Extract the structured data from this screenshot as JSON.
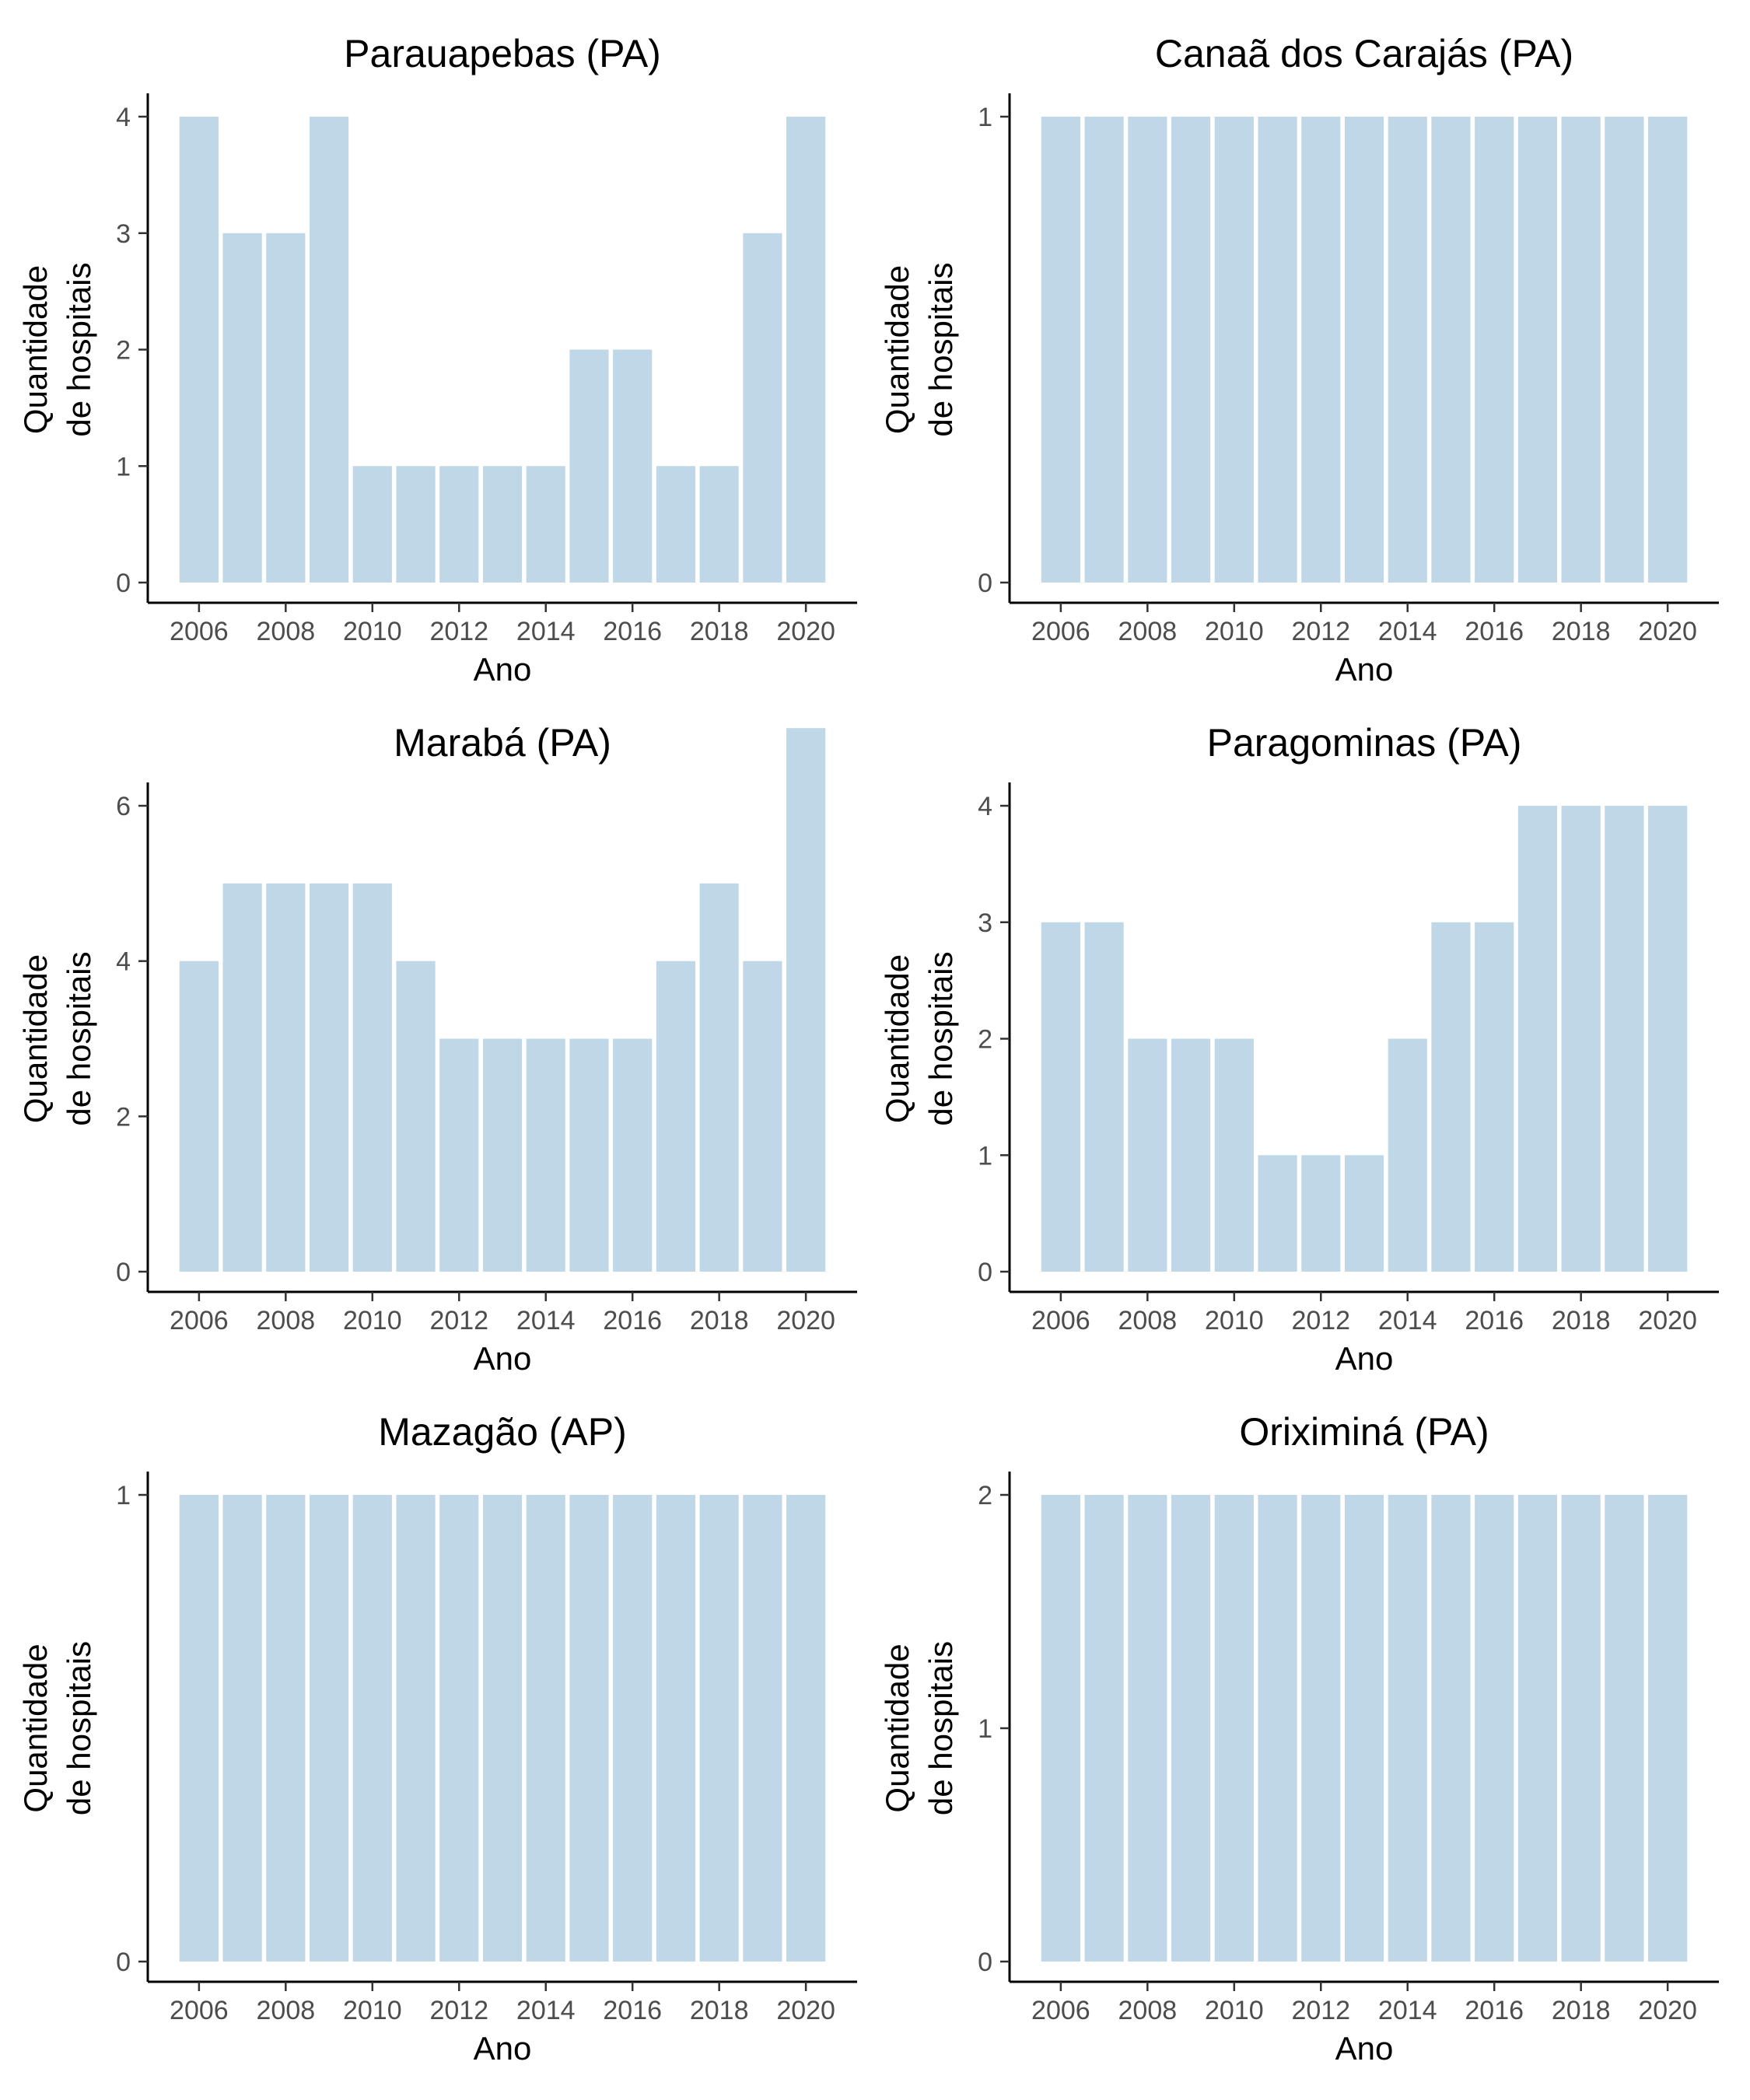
{
  "chart_data": [
    {
      "type": "bar",
      "title": "Parauapebas (PA)",
      "xlabel": "Ano",
      "ylabel": [
        "Quantidade",
        "de hospitais"
      ],
      "x": [
        2006,
        2007,
        2008,
        2009,
        2010,
        2011,
        2012,
        2013,
        2014,
        2015,
        2016,
        2017,
        2018,
        2019,
        2020
      ],
      "values": [
        4,
        3,
        3,
        4,
        1,
        1,
        1,
        1,
        1,
        2,
        2,
        1,
        1,
        3,
        4
      ],
      "xticks": [
        "2006",
        "2008",
        "2010",
        "2012",
        "2014",
        "2016",
        "2018",
        "2020"
      ],
      "yticks": [
        "0",
        "1",
        "2",
        "3",
        "4"
      ],
      "ylim": [
        0,
        4
      ]
    },
    {
      "type": "bar",
      "title": "Canaã dos Carajás (PA)",
      "xlabel": "Ano",
      "ylabel": [
        "Quantidade",
        "de hospitais"
      ],
      "x": [
        2006,
        2007,
        2008,
        2009,
        2010,
        2011,
        2012,
        2013,
        2014,
        2015,
        2016,
        2017,
        2018,
        2019,
        2020
      ],
      "values": [
        1,
        1,
        1,
        1,
        1,
        1,
        1,
        1,
        1,
        1,
        1,
        1,
        1,
        1,
        1
      ],
      "xticks": [
        "2006",
        "2008",
        "2010",
        "2012",
        "2014",
        "2016",
        "2018",
        "2020"
      ],
      "yticks": [
        "0",
        "1"
      ],
      "ylim": [
        0,
        1
      ]
    },
    {
      "type": "bar",
      "title": "Marabá (PA)",
      "xlabel": "Ano",
      "ylabel": [
        "Quantidade",
        "de hospitais"
      ],
      "x": [
        2006,
        2007,
        2008,
        2009,
        2010,
        2011,
        2012,
        2013,
        2014,
        2015,
        2016,
        2017,
        2018,
        2019,
        2020
      ],
      "values": [
        4,
        5,
        5,
        5,
        5,
        4,
        3,
        3,
        3,
        3,
        3,
        4,
        5,
        4,
        7
      ],
      "xticks": [
        "2006",
        "2008",
        "2010",
        "2012",
        "2014",
        "2016",
        "2018",
        "2020"
      ],
      "yticks": [
        "0",
        "2",
        "4",
        "6"
      ],
      "ylim": [
        0,
        7
      ]
    },
    {
      "type": "bar",
      "title": "Paragominas (PA)",
      "xlabel": "Ano",
      "ylabel": [
        "Quantidade",
        "de hospitais"
      ],
      "x": [
        2006,
        2007,
        2008,
        2009,
        2010,
        2011,
        2012,
        2013,
        2014,
        2015,
        2016,
        2017,
        2018,
        2019,
        2020
      ],
      "values": [
        3,
        3,
        2,
        2,
        2,
        1,
        1,
        1,
        2,
        3,
        3,
        4,
        4,
        4,
        4
      ],
      "xticks": [
        "2006",
        "2008",
        "2010",
        "2012",
        "2014",
        "2016",
        "2018",
        "2020"
      ],
      "yticks": [
        "0",
        "1",
        "2",
        "3",
        "4"
      ],
      "ylim": [
        0,
        4
      ]
    },
    {
      "type": "bar",
      "title": "Mazagão (AP)",
      "xlabel": "Ano",
      "ylabel": [
        "Quantidade",
        "de hospitais"
      ],
      "x": [
        2006,
        2007,
        2008,
        2009,
        2010,
        2011,
        2012,
        2013,
        2014,
        2015,
        2016,
        2017,
        2018,
        2019,
        2020
      ],
      "values": [
        1,
        1,
        1,
        1,
        1,
        1,
        1,
        1,
        1,
        1,
        1,
        1,
        1,
        1,
        1
      ],
      "xticks": [
        "2006",
        "2008",
        "2010",
        "2012",
        "2014",
        "2016",
        "2018",
        "2020"
      ],
      "yticks": [
        "0",
        "1"
      ],
      "ylim": [
        0,
        1
      ]
    },
    {
      "type": "bar",
      "title": "Oriximiná (PA)",
      "xlabel": "Ano",
      "ylabel": [
        "Quantidade",
        "de hospitais"
      ],
      "x": [
        2006,
        2007,
        2008,
        2009,
        2010,
        2011,
        2012,
        2013,
        2014,
        2015,
        2016,
        2017,
        2018,
        2019,
        2020
      ],
      "values": [
        2,
        2,
        2,
        2,
        2,
        2,
        2,
        2,
        2,
        2,
        2,
        2,
        2,
        2,
        2
      ],
      "xticks": [
        "2006",
        "2008",
        "2010",
        "2012",
        "2014",
        "2016",
        "2018",
        "2020"
      ],
      "yticks": [
        "0",
        "1",
        "2"
      ],
      "ylim": [
        0,
        2
      ]
    }
  ],
  "colors": {
    "bar_fill": "#bfd7e6",
    "axis": "#000000",
    "tick_text": "#4d4d4d",
    "background": "#ffffff"
  },
  "grid": false,
  "legend": "none"
}
